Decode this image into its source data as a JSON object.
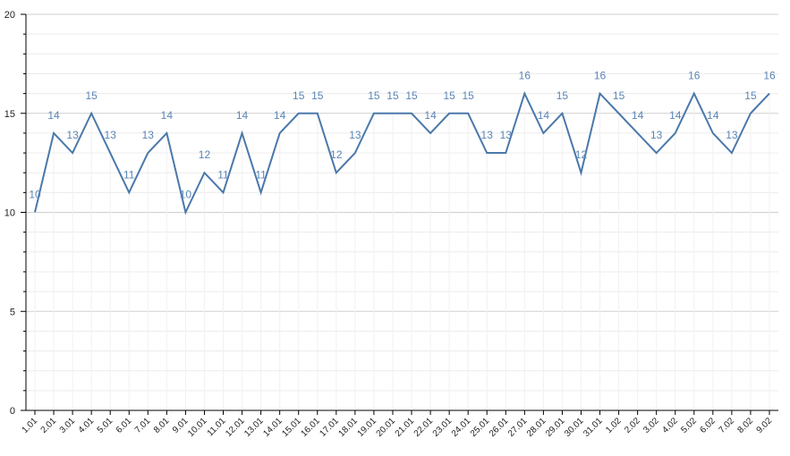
{
  "chart_data": {
    "type": "line",
    "title": "",
    "xlabel": "",
    "ylabel": "",
    "ylim": [
      0,
      20
    ],
    "yticks": [
      0,
      5,
      10,
      15,
      20
    ],
    "grid": true,
    "line_color": "#4a78aa",
    "label_color": "#5b85b5",
    "categories": [
      "1.01",
      "2.01",
      "3.01",
      "4.01",
      "5.01",
      "6.01",
      "7.01",
      "8.01",
      "9.01",
      "10.01",
      "11.01",
      "12.01",
      "13.01",
      "14.01",
      "15.01",
      "16.01",
      "17.01",
      "18.01",
      "19.01",
      "20.01",
      "21.01",
      "22.01",
      "23.01",
      "24.01",
      "25.01",
      "26.01",
      "27.01",
      "28.01",
      "29.01",
      "30.01",
      "31.01",
      "1.02",
      "2.02",
      "3.02",
      "4.02",
      "5.02",
      "6.02",
      "7.02",
      "8.02",
      "9.02"
    ],
    "series": [
      {
        "values": [
          10,
          14,
          13,
          15,
          13,
          11,
          13,
          14,
          10,
          12,
          11,
          14,
          11,
          14,
          15,
          15,
          12,
          13,
          15,
          15,
          15,
          14,
          15,
          15,
          13,
          13,
          16,
          14,
          15,
          12,
          16,
          15,
          14,
          13,
          14,
          16,
          14,
          13,
          15,
          16
        ]
      }
    ]
  }
}
